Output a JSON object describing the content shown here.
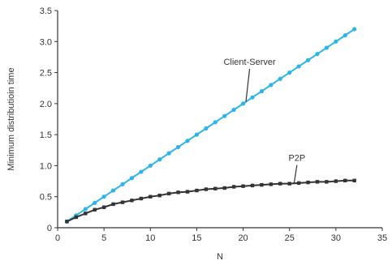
{
  "chart_data": {
    "type": "line",
    "title": "",
    "xlabel": "N",
    "ylabel": "Minimum distributioin time",
    "xlim": [
      0,
      35
    ],
    "ylim": [
      0,
      3.5
    ],
    "xticks": [
      0,
      5,
      10,
      15,
      20,
      25,
      30,
      35
    ],
    "xtick_labels": [
      "0",
      "5",
      "10",
      "15",
      "20",
      "25",
      "30",
      "35"
    ],
    "yticks": [
      0,
      0.5,
      1.0,
      1.5,
      2.0,
      2.5,
      3.0,
      3.5
    ],
    "ytick_labels": [
      "0",
      "0.5",
      "1.0",
      "1.5",
      "2.0",
      "2.5",
      "3.0",
      "3.5"
    ],
    "grid": false,
    "series": [
      {
        "name": "Client-Server",
        "color": "#2bb5e8",
        "marker": "circle",
        "x": [
          1,
          2,
          3,
          4,
          5,
          6,
          7,
          8,
          9,
          10,
          11,
          12,
          13,
          14,
          15,
          16,
          17,
          18,
          19,
          20,
          21,
          22,
          23,
          24,
          25,
          26,
          27,
          28,
          29,
          30,
          31,
          32
        ],
        "values": [
          0.1,
          0.2,
          0.3,
          0.4,
          0.5,
          0.6,
          0.7,
          0.8,
          0.9,
          1.0,
          1.1,
          1.2,
          1.3,
          1.4,
          1.5,
          1.6,
          1.7,
          1.8,
          1.9,
          2.0,
          2.1,
          2.2,
          2.3,
          2.4,
          2.5,
          2.6,
          2.7,
          2.8,
          2.9,
          3.0,
          3.1,
          3.2
        ]
      },
      {
        "name": "P2P",
        "color": "#333333",
        "marker": "square",
        "x": [
          1,
          2,
          3,
          4,
          5,
          6,
          7,
          8,
          9,
          10,
          11,
          12,
          13,
          14,
          15,
          16,
          17,
          18,
          19,
          20,
          21,
          22,
          23,
          24,
          25,
          26,
          27,
          28,
          29,
          30,
          31,
          32
        ],
        "values": [
          0.1,
          0.17,
          0.23,
          0.29,
          0.33,
          0.38,
          0.41,
          0.44,
          0.47,
          0.5,
          0.52,
          0.55,
          0.57,
          0.58,
          0.6,
          0.62,
          0.63,
          0.64,
          0.66,
          0.67,
          0.68,
          0.69,
          0.7,
          0.71,
          0.71,
          0.72,
          0.73,
          0.74,
          0.74,
          0.75,
          0.76,
          0.76
        ]
      }
    ],
    "annotations": [
      {
        "text": "Client-Server",
        "series": "Client-Server",
        "x": 20.3,
        "y": 2.03,
        "label_x": 20.7,
        "label_y": 2.6
      },
      {
        "text": "P2P",
        "series": "P2P",
        "x": 25.5,
        "y": 0.72,
        "label_x": 25.8,
        "label_y": 1.05
      }
    ]
  }
}
